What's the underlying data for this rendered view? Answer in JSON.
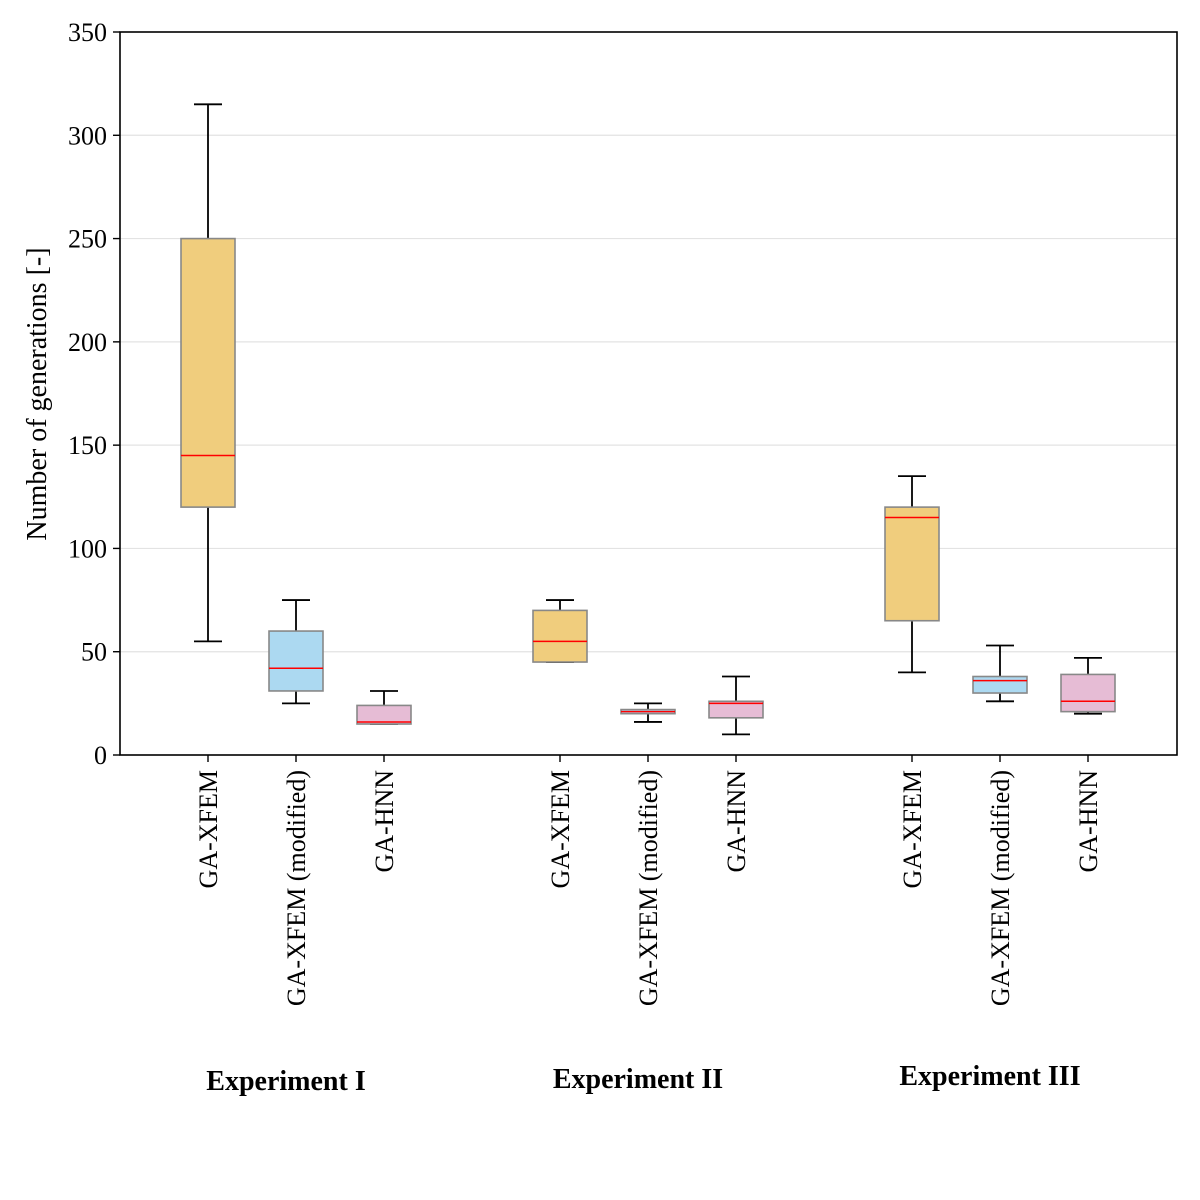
{
  "chart_data": {
    "type": "boxplot",
    "ylabel": "Number of generations [-]",
    "ylim": [
      0,
      350
    ],
    "yticks": [
      0,
      50,
      100,
      150,
      200,
      250,
      300,
      350
    ],
    "grid": "horizontal",
    "colors": {
      "GA-XFEM": "#f0cd7d",
      "GA-XFEM (modified)": "#acd9f1",
      "GA-HNN": "#e6bcd5",
      "median": "#ff0000",
      "box_edge": "#888888"
    },
    "groups": [
      {
        "label": "Experiment I",
        "boxes": [
          {
            "name": "GA-XFEM",
            "whislo": 55,
            "q1": 120,
            "med": 145,
            "q3": 250,
            "whishi": 315
          },
          {
            "name": "GA-XFEM (modified)",
            "whislo": 25,
            "q1": 31,
            "med": 42,
            "q3": 60,
            "whishi": 75
          },
          {
            "name": "GA-HNN",
            "whislo": 15,
            "q1": 15,
            "med": 16,
            "q3": 24,
            "whishi": 31
          }
        ]
      },
      {
        "label": "Experiment II",
        "boxes": [
          {
            "name": "GA-XFEM",
            "whislo": 45,
            "q1": 45,
            "med": 55,
            "q3": 70,
            "whishi": 75
          },
          {
            "name": "GA-XFEM (modified)",
            "whislo": 16,
            "q1": 20,
            "med": 21,
            "q3": 22,
            "whishi": 25
          },
          {
            "name": "GA-HNN",
            "whislo": 10,
            "q1": 18,
            "med": 25,
            "q3": 26,
            "whishi": 38
          }
        ]
      },
      {
        "label": "Experiment III",
        "boxes": [
          {
            "name": "GA-XFEM",
            "whislo": 40,
            "q1": 65,
            "med": 115,
            "q3": 120,
            "whishi": 135
          },
          {
            "name": "GA-XFEM (modified)",
            "whislo": 26,
            "q1": 30,
            "med": 36,
            "q3": 38,
            "whishi": 53
          },
          {
            "name": "GA-HNN",
            "whislo": 20,
            "q1": 21,
            "med": 26,
            "q3": 39,
            "whishi": 47
          }
        ]
      }
    ]
  }
}
